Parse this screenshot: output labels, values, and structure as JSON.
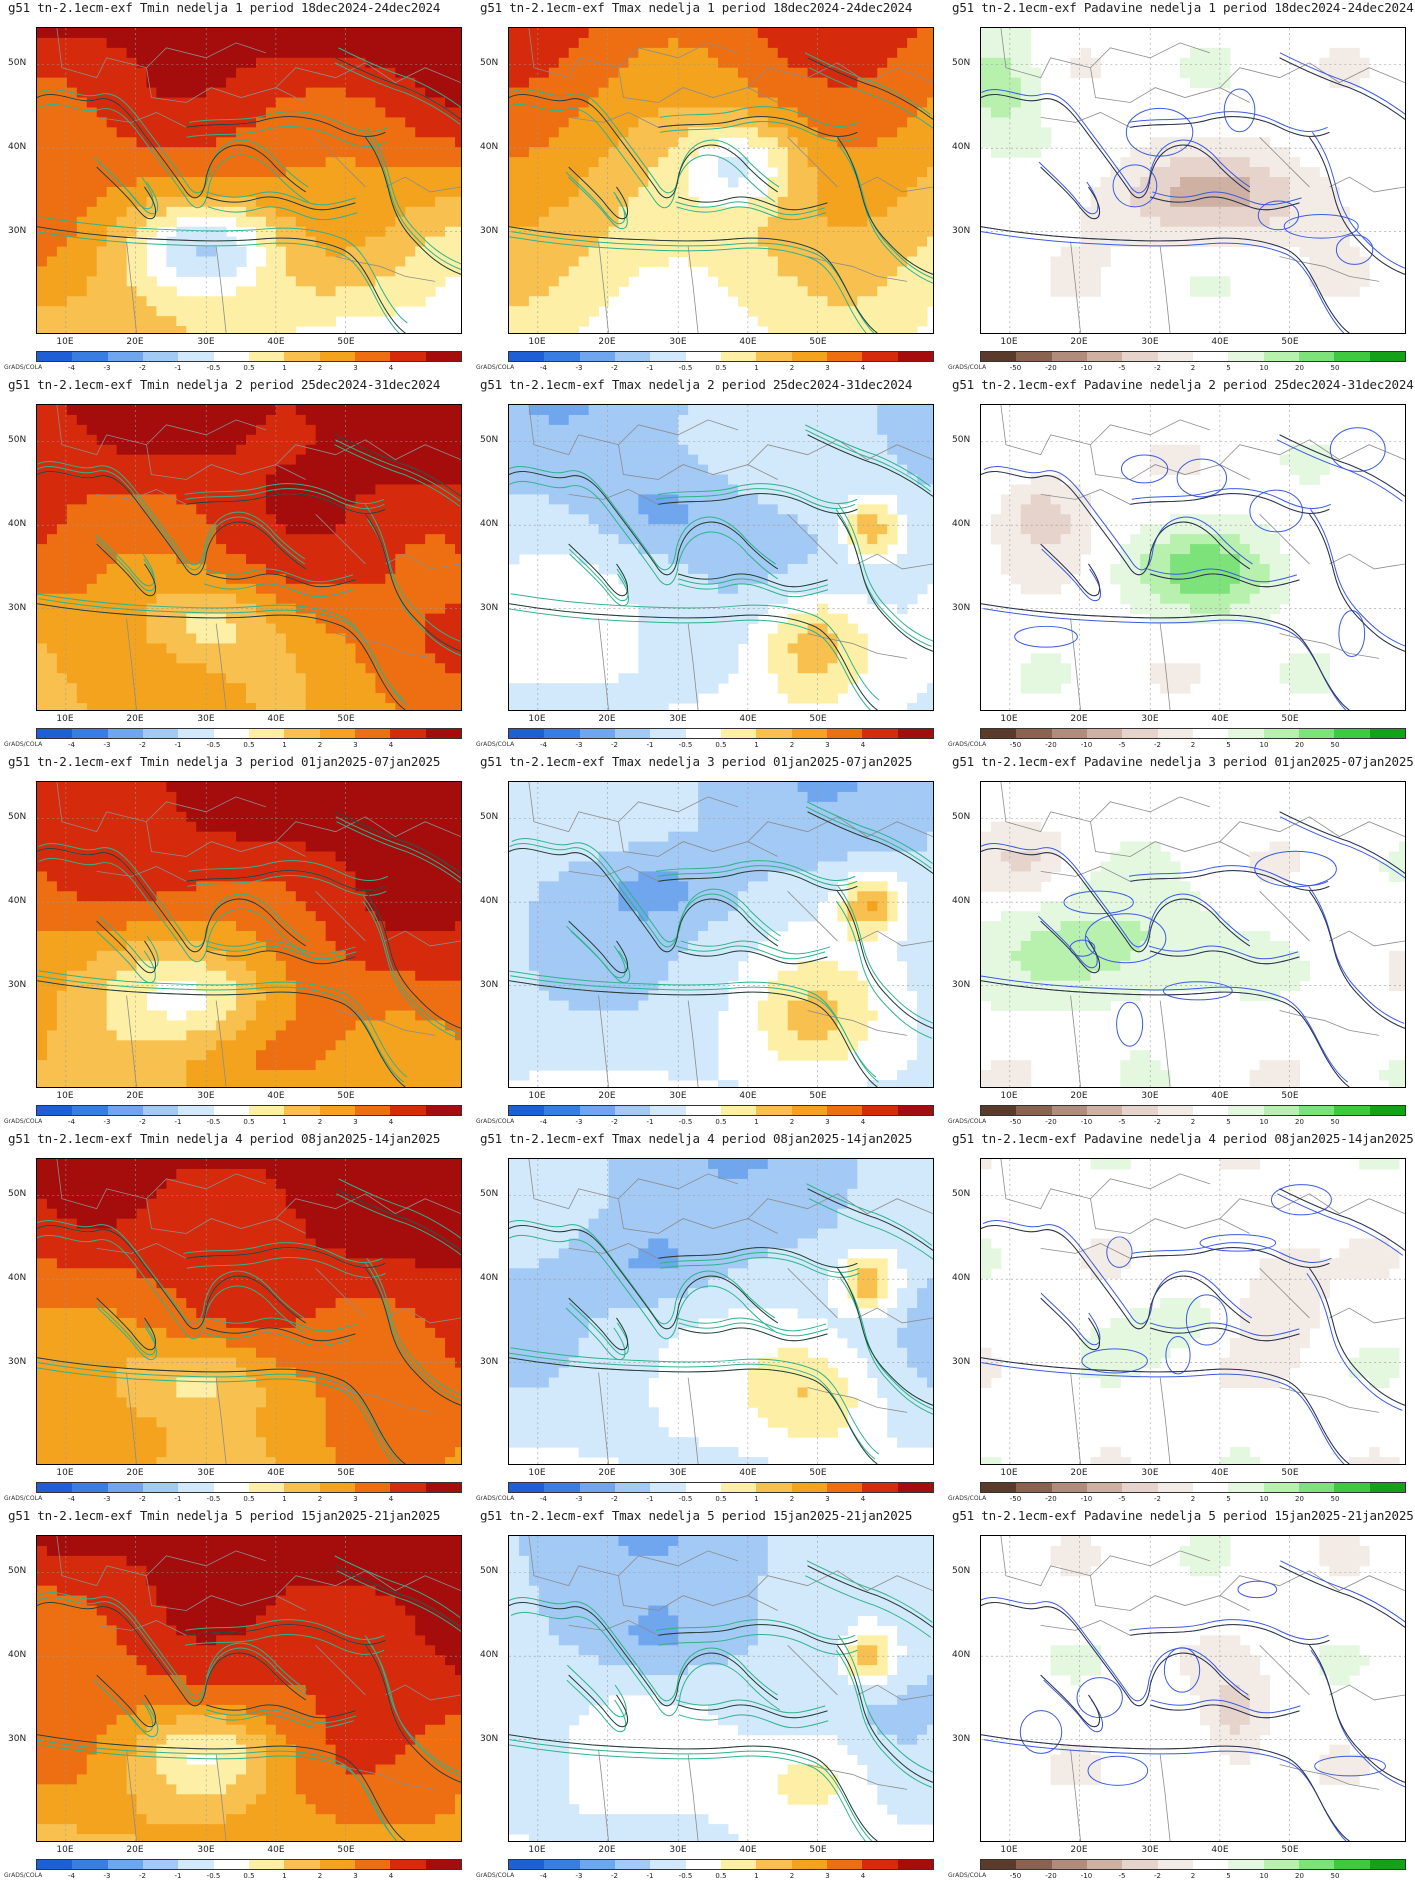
{
  "credit": "GrADS/COLA",
  "lat_labels": [
    "50N",
    "40N",
    "30N"
  ],
  "lon_labels": [
    "10E",
    "20E",
    "30E",
    "40E",
    "50E"
  ],
  "scales": {
    "temp": {
      "labels": [
        "-4",
        "-3",
        "-2",
        "-1",
        "-0.5",
        "0.5",
        "1",
        "2",
        "3",
        "4"
      ],
      "colors": [
        "#1f5fd6",
        "#3a7de0",
        "#6fa6ee",
        "#a3c9f5",
        "#d2e8fb",
        "#ffffff",
        "#fdf0a6",
        "#f8c04f",
        "#f4a31f",
        "#ee6f12",
        "#d62a0c",
        "#a50c0c"
      ]
    },
    "precip": {
      "labels": [
        "-50",
        "-20",
        "-10",
        "-5",
        "-2",
        "2",
        "5",
        "10",
        "20",
        "50"
      ],
      "colors": [
        "#5a3a2a",
        "#8a6250",
        "#b08c7c",
        "#cfb1a4",
        "#e6d3cb",
        "#f3ebe6",
        "#ffffff",
        "#e3f8df",
        "#b8f0ae",
        "#7ee27a",
        "#3fc941",
        "#14a019"
      ]
    }
  },
  "weeks": [
    {
      "nedelja": "1",
      "period": "18dec2024-24dec2024"
    },
    {
      "nedelja": "2",
      "period": "25dec2024-31dec2024"
    },
    {
      "nedelja": "3",
      "period": "01jan2025-07jan2025"
    },
    {
      "nedelja": "4",
      "period": "08jan2025-14jan2025"
    },
    {
      "nedelja": "5",
      "period": "15jan2025-21jan2025"
    }
  ],
  "variables": [
    "Tmin",
    "Tmax",
    "Padavine"
  ],
  "panels": [
    {
      "title": "g51 tn-2.1ecm-exf Tmin nedelja 1 period 18dec2024-24dec2024",
      "variable": "Tmin",
      "week": 1,
      "scale": "temp"
    },
    {
      "title": "g51 tn-2.1ecm-exf Tmax nedelja 1 period 18dec2024-24dec2024",
      "variable": "Tmax",
      "week": 1,
      "scale": "temp"
    },
    {
      "title": "g51 tn-2.1ecm-exf Padavine nedelja 1 period 18dec2024-24dec2024",
      "variable": "Padavine",
      "week": 1,
      "scale": "precip"
    },
    {
      "title": "g51 tn-2.1ecm-exf Tmin nedelja 2 period 25dec2024-31dec2024",
      "variable": "Tmin",
      "week": 2,
      "scale": "temp"
    },
    {
      "title": "g51 tn-2.1ecm-exf Tmax nedelja 2 period 25dec2024-31dec2024",
      "variable": "Tmax",
      "week": 2,
      "scale": "temp"
    },
    {
      "title": "g51 tn-2.1ecm-exf Padavine nedelja 2 period 25dec2024-31dec2024",
      "variable": "Padavine",
      "week": 2,
      "scale": "precip"
    },
    {
      "title": "g51 tn-2.1ecm-exf Tmin nedelja 3 period 01jan2025-07jan2025",
      "variable": "Tmin",
      "week": 3,
      "scale": "temp"
    },
    {
      "title": "g51 tn-2.1ecm-exf Tmax nedelja 3 period 01jan2025-07jan2025",
      "variable": "Tmax",
      "week": 3,
      "scale": "temp"
    },
    {
      "title": "g51 tn-2.1ecm-exf Padavine nedelja 3 period 01jan2025-07jan2025",
      "variable": "Padavine",
      "week": 3,
      "scale": "precip"
    },
    {
      "title": "g51 tn-2.1ecm-exf Tmin nedelja 4 period 08jan2025-14jan2025",
      "variable": "Tmin",
      "week": 4,
      "scale": "temp"
    },
    {
      "title": "g51 tn-2.1ecm-exf Tmax nedelja 4 period 08jan2025-14jan2025",
      "variable": "Tmax",
      "week": 4,
      "scale": "temp"
    },
    {
      "title": "g51 tn-2.1ecm-exf Padavine nedelja 4 period 08jan2025-14jan2025",
      "variable": "Padavine",
      "week": 4,
      "scale": "precip"
    },
    {
      "title": "g51 tn-2.1ecm-exf Tmin nedelja 5 period 15jan2025-21jan2025",
      "variable": "Tmin",
      "week": 5,
      "scale": "temp"
    },
    {
      "title": "g51 tn-2.1ecm-exf Tmax nedelja 5 period 15jan2025-21jan2025",
      "variable": "Tmax",
      "week": 5,
      "scale": "temp"
    },
    {
      "title": "g51 tn-2.1ecm-exf Padavine nedelja 5 period 15jan2025-21jan2025",
      "variable": "Padavine",
      "week": 5,
      "scale": "precip"
    }
  ]
}
